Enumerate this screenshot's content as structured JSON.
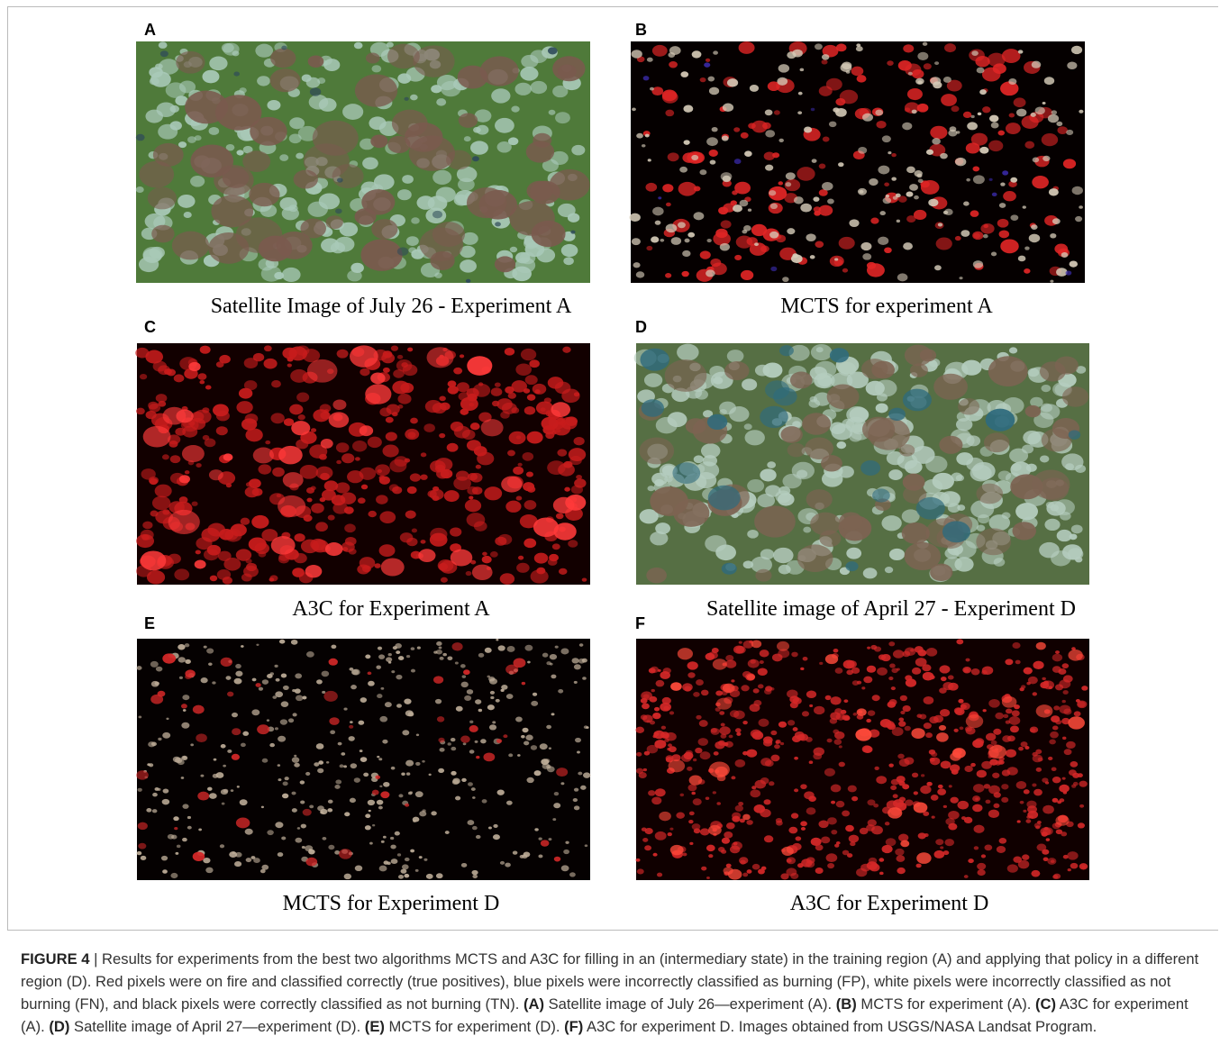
{
  "figure": {
    "panels": [
      {
        "letter": "A",
        "caption": "Satellite Image of July 26 - Experiment A"
      },
      {
        "letter": "B",
        "caption": "MCTS for experiment A"
      },
      {
        "letter": "C",
        "caption": "A3C for Experiment A"
      },
      {
        "letter": "D",
        "caption": "Satellite image of April 27 - Experiment D"
      },
      {
        "letter": "E",
        "caption": "MCTS for Experiment D"
      },
      {
        "letter": "F",
        "caption": "A3C for Experiment D"
      }
    ],
    "caption_runs": [
      {
        "text": "FIGURE 4",
        "bold": true
      },
      {
        "text": " | Results for experiments from the best two algorithms MCTS and A3C for filling in an (intermediary state) in the training region (A) and applying that policy in a different region (D). Red pixels were on fire and classified correctly (true positives), blue pixels were incorrectly classified as burning (FP), white pixels were incorrectly classified as not burning (FN), and black pixels were correctly classified as not burning (TN). ",
        "bold": false
      },
      {
        "text": "(A)",
        "bold": true
      },
      {
        "text": " Satellite image of July 26—experiment (A). ",
        "bold": false
      },
      {
        "text": "(B)",
        "bold": true
      },
      {
        "text": " MCTS for experiment (A). ",
        "bold": false
      },
      {
        "text": "(C)",
        "bold": true
      },
      {
        "text": " A3C for experiment (A). ",
        "bold": false
      },
      {
        "text": "(D)",
        "bold": true
      },
      {
        "text": " Satellite image of April 27—experiment (D). ",
        "bold": false
      },
      {
        "text": "(E)",
        "bold": true
      },
      {
        "text": " MCTS for experiment (D). ",
        "bold": false
      },
      {
        "text": "(F)",
        "bold": true
      },
      {
        "text": " A3C for experiment D. Images obtained from USGS/NASA Landsat Program.",
        "bold": false
      }
    ]
  }
}
